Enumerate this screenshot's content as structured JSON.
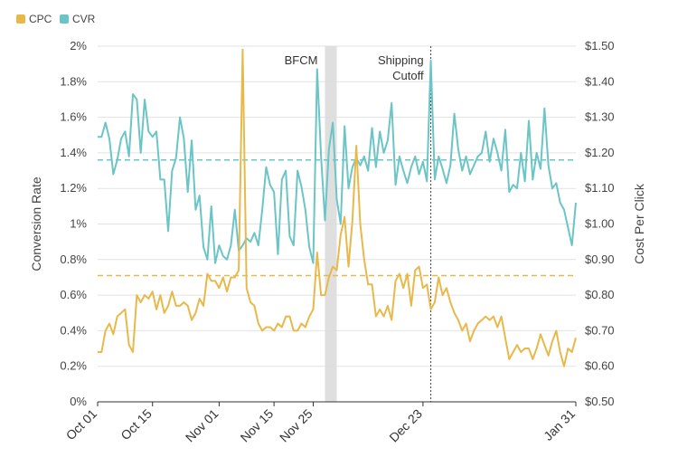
{
  "chart_data": {
    "type": "line",
    "legend": {
      "placement": "top-left",
      "items": [
        {
          "label": "CPC",
          "color": "#E8B94A"
        },
        {
          "label": "CVR",
          "color": "#6BC5C6"
        }
      ]
    },
    "x_axis": {
      "start": "Oct 01",
      "end": "Jan 31",
      "days": 122,
      "ticks": [
        {
          "label": "Oct 01",
          "day": 0
        },
        {
          "label": "Oct 15",
          "day": 14
        },
        {
          "label": "Nov 01",
          "day": 31
        },
        {
          "label": "Nov 15",
          "day": 45
        },
        {
          "label": "Nov 25",
          "day": 55
        },
        {
          "label": "Dec 23",
          "day": 83
        },
        {
          "label": "Jan 31",
          "day": 122
        }
      ]
    },
    "y_left": {
      "label": "Conversion Rate",
      "min": 0,
      "max": 2,
      "ticks": [
        "0%",
        "0.2%",
        "0.4%",
        "0.6%",
        "0.8%",
        "1%",
        "1.2%",
        "1.4%",
        "1.6%",
        "1.8%",
        "2%"
      ]
    },
    "y_right": {
      "label": "Cost Per Click",
      "min": 0.5,
      "max": 1.5,
      "ticks": [
        "$0.50",
        "$0.60",
        "$0.70",
        "$0.80",
        "$0.90",
        "$1.00",
        "$1.10",
        "$1.20",
        "$1.30",
        "$1.40",
        "$1.50"
      ]
    },
    "annotations": [
      {
        "text": "BFCM",
        "type": "band",
        "day_start": 58,
        "day_end": 61
      },
      {
        "text_lines": [
          "Shipping",
          "Cutoff"
        ],
        "type": "vline",
        "day": 85
      }
    ],
    "reference_lines": [
      {
        "series": "CVR",
        "axis": "left",
        "value": 1.36
      },
      {
        "series": "CPC",
        "axis": "right",
        "value": 0.855
      }
    ],
    "series": [
      {
        "name": "CVR",
        "axis": "left",
        "color": "#6BC5C6",
        "points": [
          [
            0,
            1.49
          ],
          [
            1,
            1.49
          ],
          [
            2,
            1.57
          ],
          [
            3,
            1.48
          ],
          [
            4,
            1.28
          ],
          [
            5,
            1.36
          ],
          [
            6,
            1.48
          ],
          [
            7,
            1.52
          ],
          [
            8,
            1.38
          ],
          [
            9,
            1.73
          ],
          [
            10,
            1.7
          ],
          [
            11,
            1.4
          ],
          [
            12,
            1.7
          ],
          [
            13,
            1.52
          ],
          [
            14,
            1.49
          ],
          [
            15,
            1.52
          ],
          [
            16,
            1.25
          ],
          [
            17,
            1.25
          ],
          [
            18,
            0.96
          ],
          [
            19,
            1.3
          ],
          [
            20,
            1.37
          ],
          [
            21,
            1.6
          ],
          [
            22,
            1.48
          ],
          [
            23,
            1.18
          ],
          [
            24,
            1.47
          ],
          [
            25,
            1.08
          ],
          [
            26,
            1.16
          ],
          [
            27,
            0.87
          ],
          [
            28,
            0.8
          ],
          [
            29,
            1.1
          ],
          [
            30,
            0.78
          ],
          [
            31,
            0.88
          ],
          [
            32,
            0.82
          ],
          [
            33,
            0.8
          ],
          [
            34,
            0.88
          ],
          [
            35,
            1.08
          ],
          [
            36,
            0.85
          ],
          [
            37,
            0.88
          ],
          [
            38,
            0.92
          ],
          [
            39,
            0.9
          ],
          [
            40,
            0.95
          ],
          [
            41,
            0.88
          ],
          [
            42,
            1.08
          ],
          [
            43,
            1.32
          ],
          [
            44,
            1.22
          ],
          [
            45,
            1.18
          ],
          [
            46,
            0.83
          ],
          [
            47,
            1.25
          ],
          [
            48,
            1.3
          ],
          [
            49,
            0.93
          ],
          [
            50,
            0.88
          ],
          [
            51,
            1.3
          ],
          [
            52,
            1.21
          ],
          [
            53,
            1.08
          ],
          [
            54,
            0.87
          ],
          [
            55,
            0.78
          ],
          [
            56,
            1.87
          ],
          [
            57,
            1.38
          ],
          [
            58,
            1.02
          ],
          [
            59,
            1.42
          ],
          [
            60,
            1.57
          ],
          [
            61,
            1.14
          ],
          [
            62,
            1.0
          ],
          [
            63,
            1.55
          ],
          [
            64,
            1.2
          ],
          [
            65,
            1.32
          ],
          [
            66,
            1.37
          ],
          [
            67,
            1.33
          ],
          [
            68,
            1.38
          ],
          [
            69,
            1.3
          ],
          [
            70,
            1.54
          ],
          [
            71,
            1.32
          ],
          [
            72,
            1.52
          ],
          [
            73,
            1.4
          ],
          [
            74,
            1.47
          ],
          [
            75,
            1.68
          ],
          [
            76,
            1.22
          ],
          [
            77,
            1.38
          ],
          [
            78,
            1.3
          ],
          [
            79,
            1.23
          ],
          [
            80,
            1.32
          ],
          [
            81,
            1.38
          ],
          [
            82,
            1.28
          ],
          [
            83,
            1.35
          ],
          [
            84,
            1.24
          ],
          [
            85,
            1.92
          ],
          [
            86,
            1.25
          ],
          [
            87,
            1.38
          ],
          [
            88,
            1.31
          ],
          [
            89,
            1.23
          ],
          [
            90,
            1.33
          ],
          [
            91,
            1.62
          ],
          [
            92,
            1.42
          ],
          [
            93,
            1.3
          ],
          [
            94,
            1.38
          ],
          [
            95,
            1.28
          ],
          [
            96,
            1.33
          ],
          [
            97,
            1.38
          ],
          [
            98,
            1.4
          ],
          [
            99,
            1.52
          ],
          [
            100,
            1.35
          ],
          [
            101,
            1.48
          ],
          [
            102,
            1.4
          ],
          [
            103,
            1.3
          ],
          [
            104,
            1.53
          ],
          [
            105,
            1.18
          ],
          [
            106,
            1.22
          ],
          [
            107,
            1.2
          ],
          [
            108,
            1.4
          ],
          [
            109,
            1.24
          ],
          [
            110,
            1.58
          ],
          [
            111,
            1.25
          ],
          [
            112,
            1.4
          ],
          [
            113,
            1.31
          ],
          [
            114,
            1.65
          ],
          [
            115,
            1.33
          ],
          [
            116,
            1.2
          ],
          [
            117,
            1.23
          ],
          [
            118,
            1.12
          ],
          [
            119,
            1.08
          ],
          [
            120,
            0.98
          ],
          [
            121,
            0.88
          ],
          [
            122,
            1.12
          ]
        ]
      },
      {
        "name": "CPC",
        "axis": "right",
        "color": "#E8B94A",
        "points": [
          [
            0,
            0.64
          ],
          [
            1,
            0.64
          ],
          [
            2,
            0.7
          ],
          [
            3,
            0.72
          ],
          [
            4,
            0.69
          ],
          [
            5,
            0.74
          ],
          [
            6,
            0.75
          ],
          [
            7,
            0.76
          ],
          [
            8,
            0.66
          ],
          [
            9,
            0.64
          ],
          [
            10,
            0.8
          ],
          [
            11,
            0.78
          ],
          [
            12,
            0.8
          ],
          [
            13,
            0.79
          ],
          [
            14,
            0.81
          ],
          [
            15,
            0.76
          ],
          [
            16,
            0.8
          ],
          [
            17,
            0.75
          ],
          [
            18,
            0.77
          ],
          [
            19,
            0.81
          ],
          [
            20,
            0.77
          ],
          [
            21,
            0.77
          ],
          [
            22,
            0.78
          ],
          [
            23,
            0.77
          ],
          [
            24,
            0.73
          ],
          [
            25,
            0.75
          ],
          [
            26,
            0.79
          ],
          [
            27,
            0.77
          ],
          [
            28,
            0.86
          ],
          [
            29,
            0.84
          ],
          [
            30,
            0.84
          ],
          [
            31,
            0.82
          ],
          [
            32,
            0.85
          ],
          [
            33,
            0.81
          ],
          [
            34,
            0.85
          ],
          [
            35,
            0.85
          ],
          [
            36,
            0.87
          ],
          [
            37,
            1.49
          ],
          [
            38,
            0.82
          ],
          [
            39,
            0.78
          ],
          [
            40,
            0.77
          ],
          [
            41,
            0.72
          ],
          [
            42,
            0.7
          ],
          [
            43,
            0.71
          ],
          [
            44,
            0.71
          ],
          [
            45,
            0.7
          ],
          [
            46,
            0.72
          ],
          [
            47,
            0.71
          ],
          [
            48,
            0.74
          ],
          [
            49,
            0.74
          ],
          [
            50,
            0.7
          ],
          [
            51,
            0.7
          ],
          [
            52,
            0.72
          ],
          [
            53,
            0.71
          ],
          [
            54,
            0.74
          ],
          [
            55,
            0.76
          ],
          [
            56,
            0.92
          ],
          [
            57,
            0.8
          ],
          [
            58,
            0.8
          ],
          [
            59,
            0.85
          ],
          [
            60,
            0.88
          ],
          [
            61,
            0.87
          ],
          [
            62,
            0.97
          ],
          [
            63,
            1.02
          ],
          [
            64,
            0.88
          ],
          [
            65,
            1.01
          ],
          [
            66,
            1.22
          ],
          [
            67,
            1.0
          ],
          [
            68,
            0.9
          ],
          [
            69,
            0.83
          ],
          [
            70,
            0.83
          ],
          [
            71,
            0.74
          ],
          [
            72,
            0.76
          ],
          [
            73,
            0.74
          ],
          [
            74,
            0.77
          ],
          [
            75,
            0.73
          ],
          [
            76,
            0.84
          ],
          [
            77,
            0.86
          ],
          [
            78,
            0.82
          ],
          [
            79,
            0.86
          ],
          [
            80,
            0.77
          ],
          [
            81,
            0.87
          ],
          [
            82,
            0.88
          ],
          [
            83,
            0.82
          ],
          [
            84,
            0.83
          ],
          [
            85,
            0.76
          ],
          [
            86,
            0.78
          ],
          [
            87,
            0.85
          ],
          [
            88,
            0.8
          ],
          [
            89,
            0.82
          ],
          [
            90,
            0.78
          ],
          [
            91,
            0.75
          ],
          [
            92,
            0.73
          ],
          [
            93,
            0.7
          ],
          [
            94,
            0.72
          ],
          [
            95,
            0.67
          ],
          [
            96,
            0.7
          ],
          [
            97,
            0.72
          ],
          [
            98,
            0.73
          ],
          [
            99,
            0.74
          ],
          [
            100,
            0.73
          ],
          [
            101,
            0.74
          ],
          [
            102,
            0.71
          ],
          [
            103,
            0.74
          ],
          [
            104,
            0.68
          ],
          [
            105,
            0.62
          ],
          [
            106,
            0.64
          ],
          [
            107,
            0.66
          ],
          [
            108,
            0.64
          ],
          [
            109,
            0.65
          ],
          [
            110,
            0.65
          ],
          [
            111,
            0.62
          ],
          [
            112,
            0.65
          ],
          [
            113,
            0.69
          ],
          [
            114,
            0.66
          ],
          [
            115,
            0.63
          ],
          [
            116,
            0.67
          ],
          [
            117,
            0.7
          ],
          [
            118,
            0.64
          ],
          [
            119,
            0.6
          ],
          [
            120,
            0.65
          ],
          [
            121,
            0.64
          ],
          [
            122,
            0.68
          ]
        ]
      }
    ]
  }
}
